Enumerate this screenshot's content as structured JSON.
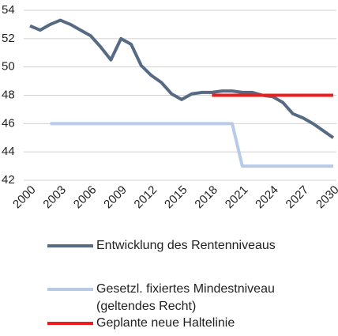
{
  "chart_data": {
    "type": "line",
    "x": [
      2000,
      2001,
      2002,
      2003,
      2004,
      2005,
      2006,
      2007,
      2008,
      2009,
      2010,
      2011,
      2012,
      2013,
      2014,
      2015,
      2016,
      2017,
      2018,
      2019,
      2020,
      2021,
      2022,
      2023,
      2024,
      2025,
      2026,
      2027,
      2028,
      2029,
      2030
    ],
    "series": [
      {
        "name": "Entwicklung des Rentenniveaus",
        "color": "#566b83",
        "values": [
          52.9,
          52.6,
          53.0,
          53.3,
          53.0,
          52.6,
          52.2,
          51.4,
          50.5,
          52.0,
          51.6,
          50.1,
          49.4,
          48.9,
          48.1,
          47.7,
          48.1,
          48.2,
          48.2,
          48.3,
          48.3,
          48.2,
          48.2,
          48.0,
          47.9,
          47.5,
          46.7,
          46.4,
          46.0,
          45.5,
          45.0
        ]
      },
      {
        "name": "Gesetzl. fixiertes Mindestniveau (geltendes Recht)",
        "color": "#b7cbe8",
        "values": [
          null,
          null,
          46,
          46,
          46,
          46,
          46,
          46,
          46,
          46,
          46,
          46,
          46,
          46,
          46,
          46,
          46,
          46,
          46,
          46,
          46,
          43,
          43,
          43,
          43,
          43,
          43,
          43,
          43,
          43,
          43
        ]
      },
      {
        "name": "Geplante neue Haltelinie",
        "color": "#ee1c1c",
        "values": [
          null,
          null,
          null,
          null,
          null,
          null,
          null,
          null,
          null,
          null,
          null,
          null,
          null,
          null,
          null,
          null,
          null,
          null,
          48,
          48,
          48,
          48,
          48,
          48,
          48,
          48,
          48,
          48,
          48,
          48,
          48
        ]
      }
    ],
    "xlim": [
      2000,
      2030
    ],
    "xticks": [
      2000,
      2003,
      2006,
      2009,
      2012,
      2015,
      2018,
      2021,
      2024,
      2027,
      2030
    ],
    "ylim": [
      42,
      54
    ],
    "yticks": [
      42,
      44,
      46,
      48,
      50,
      52,
      54
    ],
    "grid": true
  }
}
